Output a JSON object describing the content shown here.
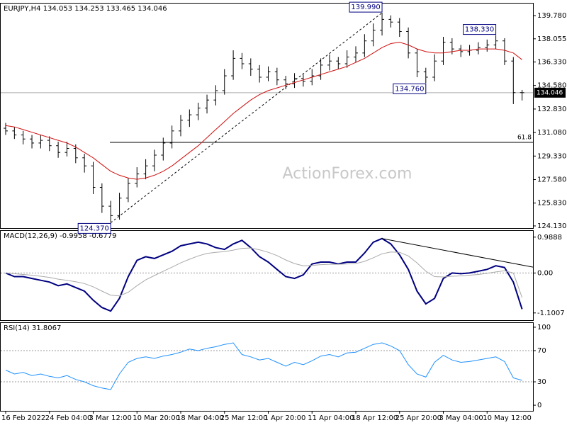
{
  "chart_data": [
    {
      "type": "ohlc",
      "title": "EURJPY,H4 134.053 134.253 133.465 134.046",
      "watermark": "ActionForex.com",
      "color": "#000000",
      "ohlc": [
        [
          131.4,
          131.8,
          130.9,
          131.2
        ],
        [
          131.2,
          131.5,
          130.6,
          130.9
        ],
        [
          130.9,
          131.2,
          130.2,
          130.6
        ],
        [
          130.6,
          130.9,
          129.9,
          130.3
        ],
        [
          130.3,
          130.9,
          129.9,
          130.5
        ],
        [
          130.5,
          130.8,
          129.7,
          130.1
        ],
        [
          130.1,
          130.4,
          129.2,
          129.6
        ],
        [
          129.6,
          130.4,
          129.3,
          129.9
        ],
        [
          129.9,
          130.2,
          128.8,
          129.2
        ],
        [
          129.2,
          129.5,
          128.1,
          128.6
        ],
        [
          128.6,
          128.9,
          126.5,
          127.0
        ],
        [
          127.0,
          127.3,
          125.1,
          125.6
        ],
        [
          125.6,
          126.0,
          124.37,
          124.9
        ],
        [
          124.9,
          126.6,
          124.6,
          126.2
        ],
        [
          126.2,
          127.7,
          125.9,
          127.3
        ],
        [
          127.3,
          128.5,
          127.0,
          128.0
        ],
        [
          128.0,
          129.1,
          127.6,
          128.6
        ],
        [
          128.6,
          129.8,
          128.2,
          129.4
        ],
        [
          129.4,
          130.7,
          129.0,
          130.3
        ],
        [
          130.3,
          131.6,
          129.9,
          131.2
        ],
        [
          131.2,
          132.4,
          130.8,
          132.0
        ],
        [
          132.0,
          132.8,
          131.5,
          132.4
        ],
        [
          132.4,
          133.3,
          132.0,
          132.9
        ],
        [
          132.9,
          133.9,
          132.5,
          133.5
        ],
        [
          133.5,
          134.6,
          133.1,
          134.2
        ],
        [
          134.2,
          135.8,
          133.9,
          135.3
        ],
        [
          135.3,
          137.2,
          135.0,
          136.6
        ],
        [
          136.6,
          137.0,
          135.8,
          136.2
        ],
        [
          136.2,
          136.6,
          135.3,
          135.8
        ],
        [
          135.8,
          136.1,
          134.8,
          135.2
        ],
        [
          135.2,
          136.0,
          134.9,
          135.6
        ],
        [
          135.6,
          135.9,
          134.6,
          135.0
        ],
        [
          135.0,
          135.3,
          134.3,
          134.7
        ],
        [
          134.7,
          135.5,
          134.4,
          135.1
        ],
        [
          135.1,
          135.4,
          134.5,
          134.9
        ],
        [
          134.9,
          135.8,
          134.6,
          135.3
        ],
        [
          135.3,
          136.6,
          135.0,
          136.1
        ],
        [
          136.1,
          136.9,
          135.7,
          136.4
        ],
        [
          136.4,
          136.7,
          135.8,
          136.2
        ],
        [
          136.2,
          137.2,
          135.9,
          136.7
        ],
        [
          136.7,
          137.5,
          136.3,
          137.0
        ],
        [
          137.0,
          138.4,
          136.7,
          137.9
        ],
        [
          137.9,
          139.2,
          137.5,
          138.7
        ],
        [
          138.7,
          139.99,
          138.3,
          139.5
        ],
        [
          139.5,
          139.8,
          138.9,
          139.3
        ],
        [
          139.3,
          139.6,
          138.2,
          138.6
        ],
        [
          138.6,
          138.9,
          136.6,
          137.0
        ],
        [
          137.0,
          137.3,
          135.2,
          135.6
        ],
        [
          135.6,
          135.9,
          134.76,
          135.2
        ],
        [
          135.2,
          136.9,
          134.9,
          136.4
        ],
        [
          136.4,
          138.2,
          136.1,
          137.8
        ],
        [
          137.8,
          138.1,
          136.9,
          137.3
        ],
        [
          137.3,
          137.6,
          136.7,
          137.1
        ],
        [
          137.1,
          137.6,
          136.8,
          137.2
        ],
        [
          137.2,
          137.8,
          136.9,
          137.4
        ],
        [
          137.4,
          138.0,
          137.1,
          137.6
        ],
        [
          137.6,
          138.33,
          137.3,
          137.9
        ],
        [
          137.9,
          138.1,
          136.1,
          136.4
        ],
        [
          136.4,
          136.7,
          133.2,
          134.05
        ],
        [
          134.053,
          134.253,
          133.465,
          134.046
        ]
      ],
      "ma": {
        "color": "#d01010",
        "values": [
          131.6,
          131.5,
          131.3,
          131.1,
          130.9,
          130.7,
          130.5,
          130.3,
          130.0,
          129.6,
          129.2,
          128.7,
          128.2,
          127.9,
          127.7,
          127.6,
          127.7,
          127.9,
          128.2,
          128.6,
          129.1,
          129.6,
          130.1,
          130.7,
          131.3,
          131.9,
          132.5,
          133.0,
          133.5,
          133.9,
          134.2,
          134.4,
          134.6,
          134.8,
          135.0,
          135.2,
          135.4,
          135.6,
          135.8,
          136.0,
          136.3,
          136.6,
          137.0,
          137.4,
          137.7,
          137.8,
          137.6,
          137.3,
          137.1,
          137.0,
          137.0,
          137.1,
          137.2,
          137.2,
          137.3,
          137.3,
          137.3,
          137.2,
          137.0,
          136.5
        ]
      },
      "annotations": [
        {
          "label": "139.990",
          "value": 139.99
        },
        {
          "label": "138.330",
          "value": 138.33
        },
        {
          "label": "134.760",
          "value": 134.76
        },
        {
          "label": "124.370",
          "value": 124.37
        }
      ],
      "fib_level": {
        "label": "61.8",
        "value": 130.35
      },
      "current_price": {
        "label": "134.046",
        "value": 134.046
      },
      "ylim": [
        123.97,
        140.68
      ],
      "yticks": [
        {
          "value": 139.78,
          "label": "139.780"
        },
        {
          "value": 138.055,
          "label": "138.055"
        },
        {
          "value": 136.33,
          "label": "136.330"
        },
        {
          "value": 134.58,
          "label": "134.580"
        },
        {
          "value": 132.83,
          "label": "132.830"
        },
        {
          "value": 131.08,
          "label": "131.080"
        },
        {
          "value": 129.33,
          "label": "129.330"
        },
        {
          "value": 127.58,
          "label": "127.580"
        },
        {
          "value": 125.83,
          "label": "125.830"
        },
        {
          "value": 124.13,
          "label": "124.130"
        }
      ]
    },
    {
      "type": "line",
      "title": "MACD(12,26,9) -0.9958 -0.6779",
      "series": [
        {
          "color": "#000080",
          "values": [
            0.0,
            -0.1,
            -0.1,
            -0.15,
            -0.2,
            -0.25,
            -0.35,
            -0.3,
            -0.4,
            -0.5,
            -0.75,
            -0.95,
            -1.05,
            -0.7,
            -0.1,
            0.35,
            0.45,
            0.4,
            0.5,
            0.6,
            0.75,
            0.8,
            0.85,
            0.8,
            0.7,
            0.65,
            0.8,
            0.9,
            0.7,
            0.45,
            0.3,
            0.1,
            -0.1,
            -0.15,
            -0.05,
            0.25,
            0.3,
            0.3,
            0.25,
            0.3,
            0.3,
            0.55,
            0.85,
            0.95,
            0.8,
            0.5,
            0.1,
            -0.5,
            -0.85,
            -0.7,
            -0.15,
            0.0,
            -0.02,
            0.0,
            0.05,
            0.1,
            0.2,
            0.15,
            -0.25,
            -0.9958
          ]
        },
        {
          "color": "#aaaaaa",
          "values": [
            0.0,
            -0.02,
            -0.04,
            -0.06,
            -0.09,
            -0.12,
            -0.17,
            -0.2,
            -0.24,
            -0.29,
            -0.38,
            -0.5,
            -0.61,
            -0.63,
            -0.53,
            -0.35,
            -0.19,
            -0.07,
            0.05,
            0.16,
            0.28,
            0.38,
            0.47,
            0.54,
            0.57,
            0.59,
            0.63,
            0.68,
            0.69,
            0.64,
            0.57,
            0.48,
            0.36,
            0.26,
            0.2,
            0.21,
            0.23,
            0.24,
            0.24,
            0.25,
            0.26,
            0.32,
            0.42,
            0.53,
            0.58,
            0.57,
            0.47,
            0.28,
            0.05,
            -0.1,
            -0.11,
            -0.09,
            -0.08,
            -0.06,
            -0.04,
            -0.01,
            0.03,
            0.06,
            0.0,
            -0.6779
          ]
        }
      ],
      "levels": [
        0
      ],
      "ylim": [
        -1.3,
        1.16
      ],
      "yticks": [
        0.9888,
        {
          "value": 0,
          "label": "0.00"
        },
        -1.1007
      ]
    },
    {
      "type": "line",
      "title": "RSI(14) 31.8067",
      "series": [
        {
          "color": "#1e90ff",
          "values": [
            45,
            40,
            42,
            38,
            40,
            37,
            35,
            38,
            33,
            30,
            25,
            22,
            20,
            40,
            55,
            60,
            62,
            60,
            63,
            65,
            68,
            72,
            70,
            73,
            75,
            78,
            80,
            65,
            62,
            58,
            60,
            55,
            50,
            55,
            52,
            57,
            63,
            65,
            62,
            67,
            68,
            73,
            78,
            80,
            76,
            70,
            52,
            40,
            36,
            55,
            64,
            58,
            55,
            56,
            58,
            60,
            62,
            56,
            35,
            31.8067
          ]
        }
      ],
      "levels": [
        70,
        30
      ],
      "ylim": [
        -7.2,
        105.4
      ],
      "yticks": [
        100,
        70,
        30,
        0
      ],
      "categories": [
        "16 Feb 2022",
        null,
        null,
        null,
        null,
        "24 Feb 04:00",
        null,
        null,
        null,
        null,
        "3 Mar 12:00",
        null,
        null,
        null,
        null,
        "10 Mar 20:00",
        null,
        null,
        null,
        null,
        "18 Mar 04:00",
        null,
        null,
        null,
        null,
        "25 Mar 12:00",
        null,
        null,
        null,
        null,
        "1 Apr 20:00",
        null,
        null,
        null,
        null,
        "11 Apr 04:00",
        null,
        null,
        null,
        null,
        "18 Apr 12:00",
        null,
        null,
        null,
        null,
        "25 Apr 20:00",
        null,
        null,
        null,
        null,
        "3 May 04:00",
        null,
        null,
        null,
        null,
        "10 May 12:00",
        null,
        null,
        null,
        null
      ]
    }
  ]
}
